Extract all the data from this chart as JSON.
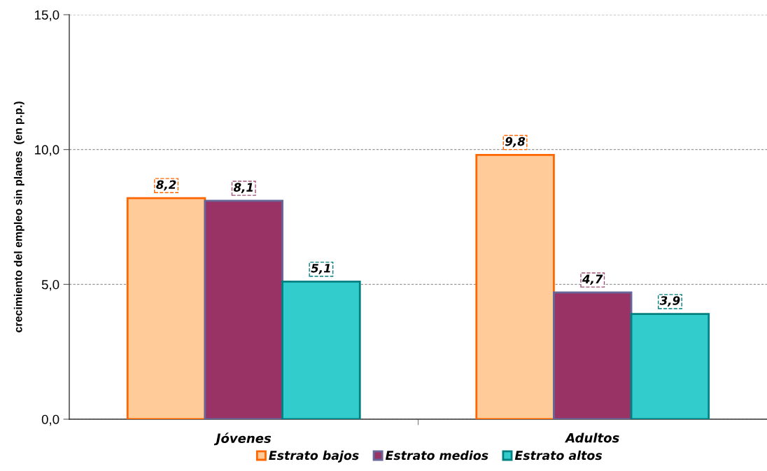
{
  "chart_data": {
    "type": "bar",
    "ylabel": "crecimiento del empleo sin planes  (en p.p.)",
    "categories": [
      "Jóvenes",
      "Adultos"
    ],
    "series": [
      {
        "name": "Estrato bajos",
        "color": "#ffcc99",
        "values": [
          8.2,
          9.8
        ],
        "value_labels": [
          "8,2",
          "9,8"
        ]
      },
      {
        "name": "Estrato medios",
        "color": "#993366",
        "values": [
          8.1,
          4.7
        ],
        "value_labels": [
          "8,1",
          "4,7"
        ]
      },
      {
        "name": "Estrato altos",
        "color": "#33cccc",
        "values": [
          5.1,
          3.9
        ],
        "value_labels": [
          "5,1",
          "3,9"
        ]
      }
    ],
    "ylim": [
      0,
      15
    ],
    "yticks": [
      {
        "value": 0,
        "label": "0,0"
      },
      {
        "value": 5,
        "label": "5,0"
      },
      {
        "value": 10,
        "label": "10,0"
      },
      {
        "value": 15,
        "label": "15,0"
      }
    ],
    "grid": "y",
    "legend": "bottom"
  }
}
